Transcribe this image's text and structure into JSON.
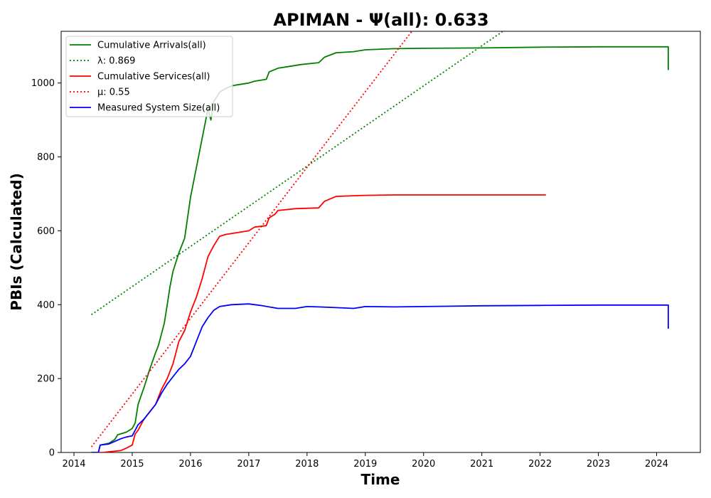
{
  "chart_data": {
    "type": "line",
    "title": "APIMAN -  Ψ(all): 0.633",
    "xlabel": "Time",
    "ylabel": "PBIs (Calculated)",
    "xlim": [
      2013.78,
      2024.75
    ],
    "ylim": [
      0,
      1140
    ],
    "xticks": [
      2014,
      2015,
      2016,
      2017,
      2018,
      2019,
      2020,
      2021,
      2022,
      2023,
      2024
    ],
    "yticks": [
      0,
      200,
      400,
      600,
      800,
      1000
    ],
    "grid": false,
    "legend_position": "top-left",
    "series": [
      {
        "name": "Cumulative Arrivals(all)",
        "color": "#008000",
        "style": "solid",
        "points": [
          [
            2014.3,
            0
          ],
          [
            2014.42,
            0
          ],
          [
            2014.45,
            20
          ],
          [
            2014.6,
            25
          ],
          [
            2014.7,
            35
          ],
          [
            2014.75,
            48
          ],
          [
            2014.9,
            55
          ],
          [
            2015.0,
            65
          ],
          [
            2015.05,
            80
          ],
          [
            2015.1,
            130
          ],
          [
            2015.2,
            175
          ],
          [
            2015.3,
            225
          ],
          [
            2015.4,
            270
          ],
          [
            2015.45,
            290
          ],
          [
            2015.5,
            320
          ],
          [
            2015.55,
            350
          ],
          [
            2015.6,
            400
          ],
          [
            2015.65,
            450
          ],
          [
            2015.7,
            490
          ],
          [
            2015.8,
            540
          ],
          [
            2015.9,
            580
          ],
          [
            2016.0,
            690
          ],
          [
            2016.1,
            770
          ],
          [
            2016.2,
            850
          ],
          [
            2016.3,
            930
          ],
          [
            2016.35,
            900
          ],
          [
            2016.4,
            950
          ],
          [
            2016.5,
            975
          ],
          [
            2016.6,
            985
          ],
          [
            2016.7,
            992
          ],
          [
            2016.8,
            995
          ],
          [
            2017.0,
            1000
          ],
          [
            2017.1,
            1005
          ],
          [
            2017.3,
            1010
          ],
          [
            2017.35,
            1030
          ],
          [
            2017.5,
            1040
          ],
          [
            2017.7,
            1045
          ],
          [
            2017.9,
            1050
          ],
          [
            2018.2,
            1055
          ],
          [
            2018.3,
            1070
          ],
          [
            2018.5,
            1082
          ],
          [
            2018.8,
            1085
          ],
          [
            2019.0,
            1090
          ],
          [
            2019.5,
            1093
          ],
          [
            2020.0,
            1094
          ],
          [
            2021.0,
            1095
          ],
          [
            2022.0,
            1097
          ],
          [
            2023.0,
            1098
          ],
          [
            2024.0,
            1098
          ],
          [
            2024.2,
            1098
          ],
          [
            2024.2,
            1035
          ]
        ]
      },
      {
        "name": "λ: 0.869",
        "color": "#008000",
        "style": "dotted",
        "points": [
          [
            2014.3,
            373
          ],
          [
            2021.36,
            1140
          ]
        ]
      },
      {
        "name": "Cumulative Services(all)",
        "color": "#ff0000",
        "style": "solid",
        "points": [
          [
            2014.3,
            0
          ],
          [
            2014.5,
            0
          ],
          [
            2014.6,
            2
          ],
          [
            2014.8,
            5
          ],
          [
            2014.9,
            12
          ],
          [
            2015.0,
            20
          ],
          [
            2015.05,
            50
          ],
          [
            2015.1,
            60
          ],
          [
            2015.2,
            90
          ],
          [
            2015.3,
            110
          ],
          [
            2015.4,
            130
          ],
          [
            2015.5,
            170
          ],
          [
            2015.6,
            200
          ],
          [
            2015.7,
            240
          ],
          [
            2015.8,
            300
          ],
          [
            2015.9,
            330
          ],
          [
            2016.0,
            380
          ],
          [
            2016.1,
            420
          ],
          [
            2016.2,
            470
          ],
          [
            2016.3,
            530
          ],
          [
            2016.4,
            560
          ],
          [
            2016.5,
            585
          ],
          [
            2016.6,
            590
          ],
          [
            2016.8,
            595
          ],
          [
            2017.0,
            600
          ],
          [
            2017.1,
            610
          ],
          [
            2017.3,
            614
          ],
          [
            2017.35,
            635
          ],
          [
            2017.45,
            645
          ],
          [
            2017.5,
            655
          ],
          [
            2017.8,
            660
          ],
          [
            2018.2,
            662
          ],
          [
            2018.3,
            680
          ],
          [
            2018.5,
            693
          ],
          [
            2018.8,
            695
          ],
          [
            2019.0,
            696
          ],
          [
            2019.5,
            697
          ],
          [
            2020.0,
            697
          ],
          [
            2021.0,
            697
          ],
          [
            2022.1,
            697
          ]
        ]
      },
      {
        "name": "μ: 0.55",
        "color": "#ff0000",
        "style": "dotted",
        "points": [
          [
            2014.3,
            15
          ],
          [
            2019.8,
            1140
          ]
        ]
      },
      {
        "name": "Measured System Size(all)",
        "color": "#0000ff",
        "style": "solid",
        "points": [
          [
            2014.3,
            0
          ],
          [
            2014.42,
            0
          ],
          [
            2014.45,
            20
          ],
          [
            2014.6,
            23
          ],
          [
            2014.7,
            30
          ],
          [
            2014.8,
            37
          ],
          [
            2014.9,
            42
          ],
          [
            2015.0,
            45
          ],
          [
            2015.05,
            60
          ],
          [
            2015.1,
            75
          ],
          [
            2015.2,
            90
          ],
          [
            2015.3,
            110
          ],
          [
            2015.4,
            130
          ],
          [
            2015.5,
            160
          ],
          [
            2015.6,
            185
          ],
          [
            2015.7,
            205
          ],
          [
            2015.8,
            225
          ],
          [
            2015.9,
            240
          ],
          [
            2016.0,
            260
          ],
          [
            2016.1,
            300
          ],
          [
            2016.2,
            340
          ],
          [
            2016.3,
            365
          ],
          [
            2016.4,
            385
          ],
          [
            2016.5,
            395
          ],
          [
            2016.7,
            400
          ],
          [
            2017.0,
            402
          ],
          [
            2017.2,
            398
          ],
          [
            2017.5,
            390
          ],
          [
            2017.8,
            390
          ],
          [
            2018.0,
            395
          ],
          [
            2018.2,
            394
          ],
          [
            2018.5,
            392
          ],
          [
            2018.8,
            390
          ],
          [
            2019.0,
            395
          ],
          [
            2019.5,
            394
          ],
          [
            2020.0,
            395
          ],
          [
            2021.0,
            397
          ],
          [
            2022.0,
            398
          ],
          [
            2023.0,
            399
          ],
          [
            2024.0,
            399
          ],
          [
            2024.2,
            399
          ],
          [
            2024.2,
            335
          ]
        ]
      }
    ]
  }
}
